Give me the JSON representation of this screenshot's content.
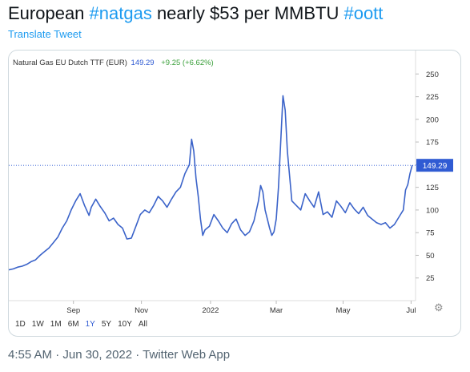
{
  "tweet": {
    "text_1": "European ",
    "hashtag_1": "#natgas",
    "text_2": " nearly $53 per MMBTU ",
    "hashtag_2": "#oott",
    "translate_label": "Translate Tweet",
    "meta": "4:55 AM · Jun 30, 2022 · Twitter Web App"
  },
  "chart_header": {
    "instrument": "Natural Gas EU Dutch TTF (EUR)",
    "price": "149.29",
    "change": "+9.25 (+6.62%)"
  },
  "range_options": [
    "1D",
    "1W",
    "1M",
    "6M",
    "1Y",
    "5Y",
    "10Y",
    "All"
  ],
  "range_selected": "1Y",
  "settings_icon": "gear-icon",
  "colors": {
    "line": "#3b63c9",
    "price_tag": "#2f5bd3",
    "hashtag": "#1d9bf0",
    "change": "#3a9f3a"
  },
  "chart_data": {
    "type": "line",
    "title": "Natural Gas EU Dutch TTF (EUR)",
    "ylim": [
      0,
      260
    ],
    "yticks": [
      25,
      50,
      75,
      100,
      125,
      150,
      175,
      200,
      225,
      250
    ],
    "xticks": [
      {
        "label": "Sep",
        "x": 58
      },
      {
        "label": "Nov",
        "x": 119
      },
      {
        "label": "2022",
        "x": 181
      },
      {
        "label": "Mar",
        "x": 240
      },
      {
        "label": "May",
        "x": 300
      },
      {
        "label": "Jul",
        "x": 361
      }
    ],
    "xlim": [
      0,
      365
    ],
    "last_value_label": "149.29",
    "last_value": 149.29,
    "series": [
      {
        "x": [
          0,
          4,
          8,
          12,
          16,
          20,
          24,
          28,
          32,
          36,
          40,
          44,
          48,
          52,
          56,
          60,
          64,
          68,
          72,
          74,
          78,
          82,
          86,
          90,
          94,
          98,
          102,
          106,
          110,
          114,
          118,
          122,
          126,
          130,
          134,
          138,
          142,
          146,
          150,
          154,
          158,
          162,
          164,
          166,
          168,
          170,
          172,
          174,
          176,
          180,
          184,
          188,
          192,
          196,
          200,
          204,
          208,
          212,
          216,
          220,
          224,
          226,
          228,
          230,
          232,
          234,
          236,
          238,
          240,
          242,
          244,
          246,
          248,
          250,
          254,
          258,
          262,
          266,
          270,
          274,
          278,
          282,
          286,
          290,
          294,
          298,
          302,
          306,
          310,
          314,
          318,
          322,
          326,
          330,
          334,
          338,
          342,
          346,
          350,
          354,
          356,
          358,
          360,
          362
        ],
        "y": [
          34,
          35,
          37,
          38,
          40,
          43,
          45,
          50,
          54,
          58,
          64,
          70,
          80,
          88,
          100,
          110,
          118,
          105,
          94,
          103,
          112,
          104,
          97,
          88,
          91,
          84,
          80,
          68,
          69,
          82,
          95,
          100,
          97,
          105,
          115,
          110,
          103,
          112,
          120,
          125,
          140,
          150,
          178,
          165,
          135,
          115,
          90,
          72,
          78,
          82,
          95,
          88,
          80,
          75,
          85,
          90,
          78,
          72,
          76,
          88,
          110,
          127,
          120,
          100,
          90,
          80,
          72,
          76,
          90,
          125,
          175,
          226,
          210,
          165,
          110,
          105,
          100,
          118,
          110,
          103,
          120,
          95,
          98,
          92,
          110,
          104,
          97,
          108,
          101,
          96,
          103,
          94,
          90,
          86,
          84,
          86,
          80,
          84,
          92,
          100,
          122,
          128,
          140,
          149.29
        ]
      }
    ]
  }
}
